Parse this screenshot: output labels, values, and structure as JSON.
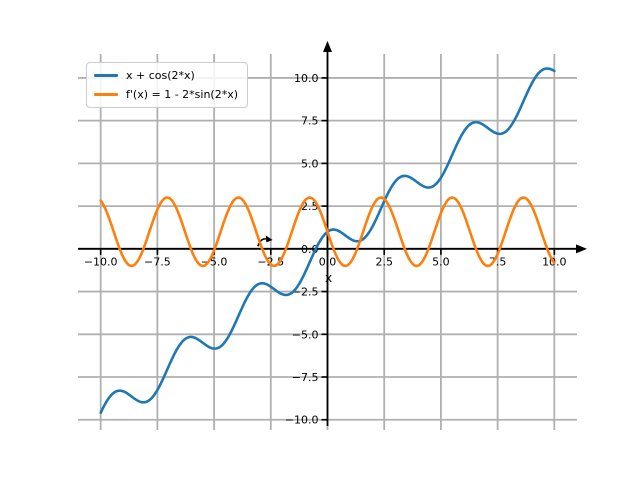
{
  "figure": {
    "background": "#ffffff"
  },
  "legend": {
    "position": "upper left",
    "entries": [
      {
        "label": "x + cos(2*x)",
        "color": "#1f77b4"
      },
      {
        "label": "f'(x) = 1 - 2*sin(2*x)",
        "color": "#ff7f0e"
      }
    ]
  },
  "chart_data": {
    "type": "line",
    "title": "",
    "xlabel": "x",
    "ylabel": "",
    "xlim": [
      -11,
      11
    ],
    "ylim": [
      -10.6,
      11.4
    ],
    "x_domain": [
      -10,
      10
    ],
    "sample_step": 0.05,
    "grid": true,
    "grid_color": "#b0b0b0",
    "axis_color": "#000000",
    "text_color": "#000000",
    "x_ticks": {
      "values": [
        -10,
        -7.5,
        -5,
        -2.5,
        0,
        2.5,
        5,
        7.5,
        10
      ],
      "labels": [
        "−10.0",
        "−7.5",
        "−5.0",
        "−2.5",
        "0.0",
        "2.5",
        "5.0",
        "7.5",
        "10.0"
      ]
    },
    "y_ticks": {
      "values": [
        10,
        7.5,
        5,
        2.5,
        0,
        -2.5,
        -5,
        -7.5,
        -10
      ],
      "labels": [
        "10.0",
        "7.5",
        "5.0",
        "2.5",
        "0.0",
        "−2.5",
        "−5.0",
        "−7.5",
        "−10.0"
      ]
    },
    "series": [
      {
        "name": "x + cos(2*x)",
        "expr": "x + cos(2*x)",
        "color": "#1f77b4",
        "linewidth": 2.6
      },
      {
        "name": "f'(x) = 1 - 2*sin(2*x)",
        "expr": "1 - 2*sin(2*x)",
        "color": "#ff7f0e",
        "linewidth": 2.6
      }
    ],
    "annotations": [
      {
        "name": "curved-arrow",
        "desc": "small curved arrow pointing right, just above x-axis near x = -2.7"
      }
    ],
    "legend_position": "upper left"
  }
}
